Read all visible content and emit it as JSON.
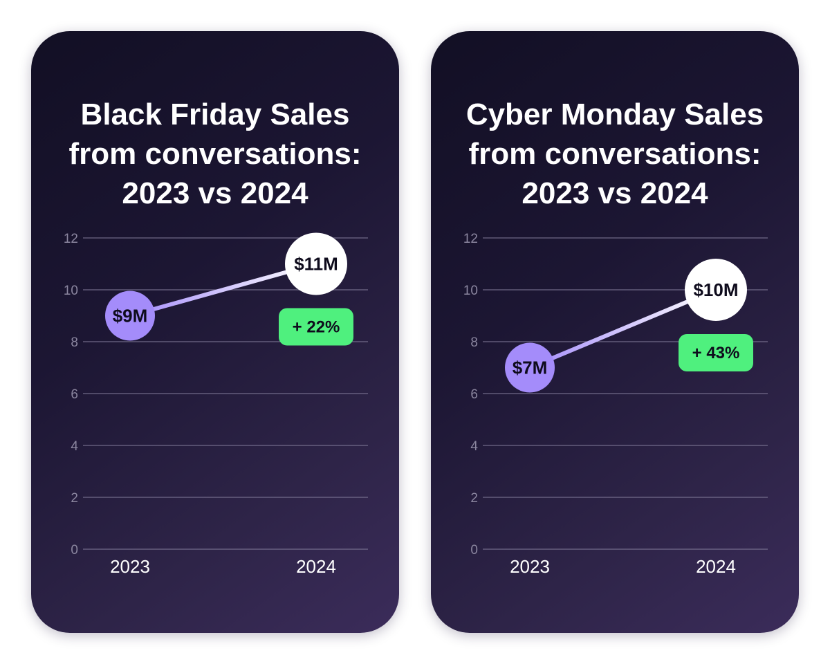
{
  "colors": {
    "point_2023": "#a48cfa",
    "point_2024": "#ffffff",
    "line_start": "#a48cfa",
    "line_end": "#ffffff",
    "badge": "#4ff07e"
  },
  "chart_data": [
    {
      "type": "line",
      "title_lines": [
        "Black Friday Sales",
        "from conversations:",
        "2023 vs 2024"
      ],
      "categories": [
        "2023",
        "2024"
      ],
      "series": [
        {
          "name": "Sales ($M)",
          "values": [
            9,
            11
          ]
        }
      ],
      "point_labels": [
        "$9M",
        "$11M"
      ],
      "badge": "+ 22%",
      "ylim": [
        0,
        12
      ],
      "y_ticks": [
        0,
        2,
        4,
        6,
        8,
        10,
        12
      ],
      "grid": true
    },
    {
      "type": "line",
      "title_lines": [
        "Cyber Monday Sales",
        "from conversations:",
        "2023 vs 2024"
      ],
      "categories": [
        "2023",
        "2024"
      ],
      "series": [
        {
          "name": "Sales ($M)",
          "values": [
            7,
            10
          ]
        }
      ],
      "point_labels": [
        "$7M",
        "$10M"
      ],
      "badge": "+ 43%",
      "ylim": [
        0,
        12
      ],
      "y_ticks": [
        0,
        2,
        4,
        6,
        8,
        10,
        12
      ],
      "grid": true
    }
  ]
}
